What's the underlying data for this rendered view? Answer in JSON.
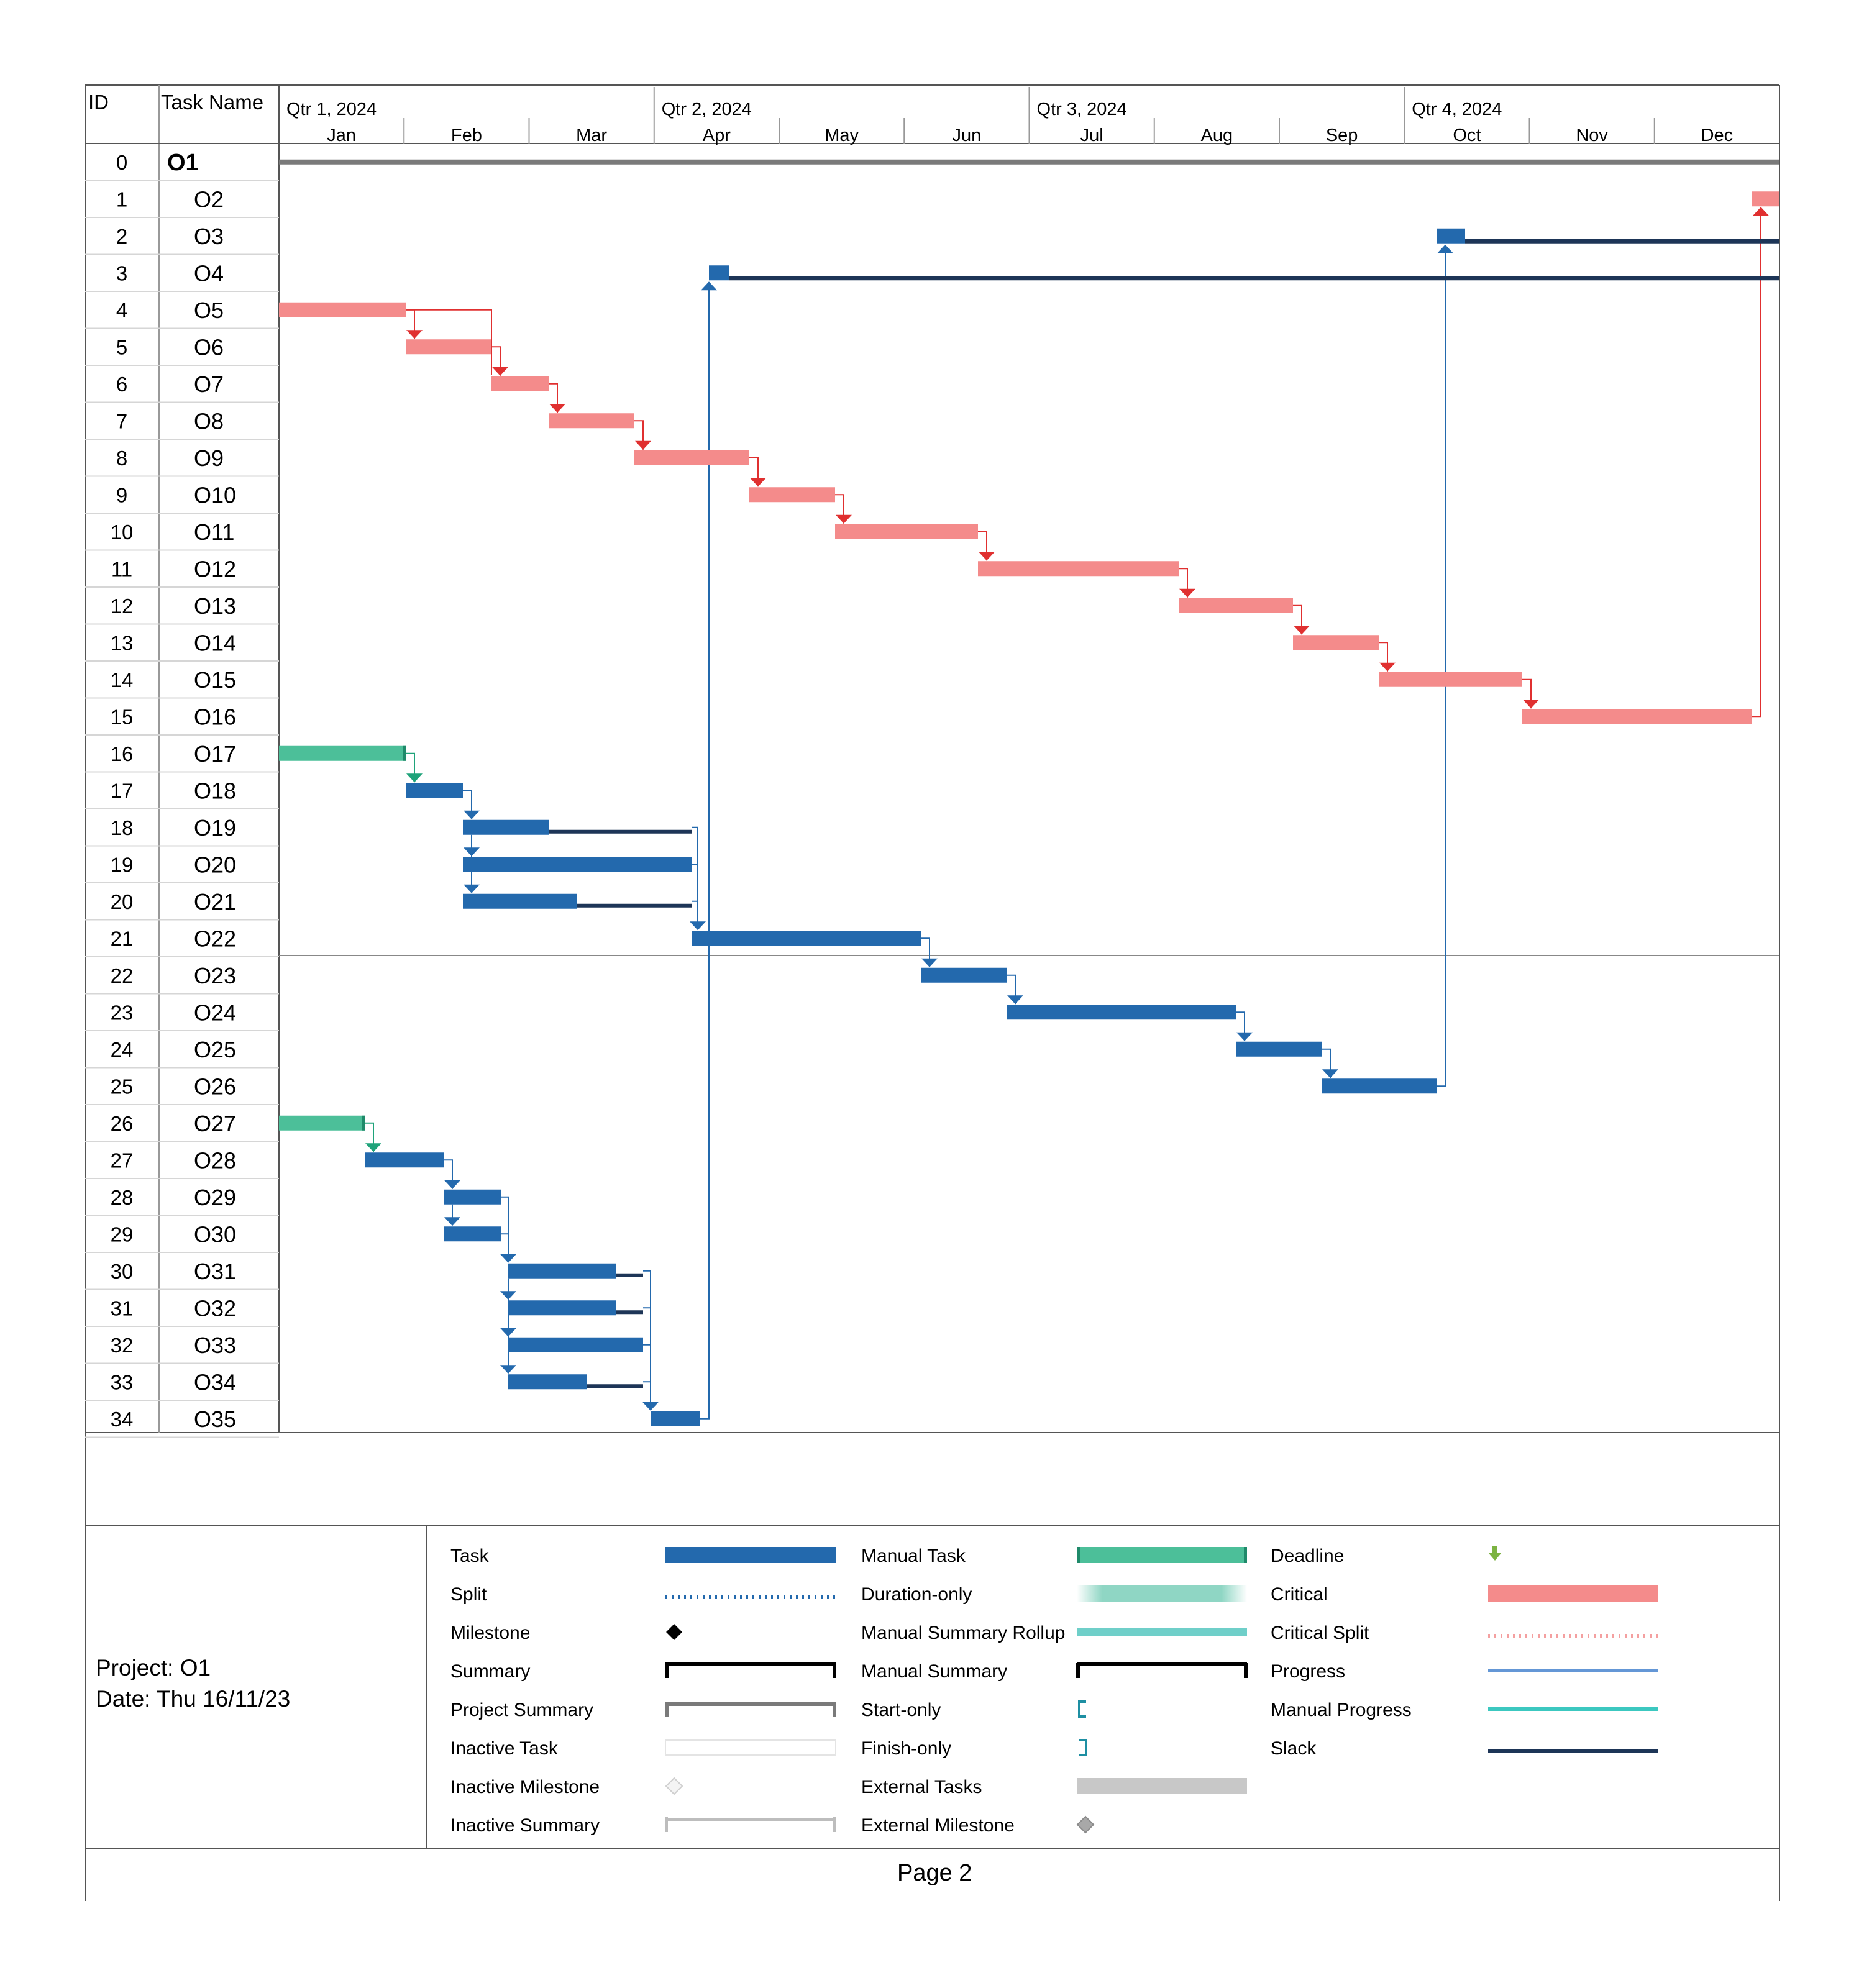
{
  "header": {
    "id_label": "ID",
    "task_name_label": "Task Name",
    "quarters": [
      "Qtr 1, 2024",
      "Qtr 2, 2024",
      "Qtr 3, 2024",
      "Qtr 4, 2024"
    ],
    "months": [
      "Jan",
      "Feb",
      "Mar",
      "Apr",
      "May",
      "Jun",
      "Jul",
      "Aug",
      "Sep",
      "Oct",
      "Nov",
      "Dec"
    ]
  },
  "rows": [
    {
      "id": "0",
      "name": "O1"
    },
    {
      "id": "1",
      "name": "O2"
    },
    {
      "id": "2",
      "name": "O3"
    },
    {
      "id": "3",
      "name": "O4"
    },
    {
      "id": "4",
      "name": "O5"
    },
    {
      "id": "5",
      "name": "O6"
    },
    {
      "id": "6",
      "name": "O7"
    },
    {
      "id": "7",
      "name": "O8"
    },
    {
      "id": "8",
      "name": "O9"
    },
    {
      "id": "9",
      "name": "O10"
    },
    {
      "id": "10",
      "name": "O11"
    },
    {
      "id": "11",
      "name": "O12"
    },
    {
      "id": "12",
      "name": "O13"
    },
    {
      "id": "13",
      "name": "O14"
    },
    {
      "id": "14",
      "name": "O15"
    },
    {
      "id": "15",
      "name": "O16"
    },
    {
      "id": "16",
      "name": "O17"
    },
    {
      "id": "17",
      "name": "O18"
    },
    {
      "id": "18",
      "name": "O19"
    },
    {
      "id": "19",
      "name": "O20"
    },
    {
      "id": "20",
      "name": "O21"
    },
    {
      "id": "21",
      "name": "O22"
    },
    {
      "id": "22",
      "name": "O23"
    },
    {
      "id": "23",
      "name": "O24"
    },
    {
      "id": "24",
      "name": "O25"
    },
    {
      "id": "25",
      "name": "O26"
    },
    {
      "id": "26",
      "name": "O27"
    },
    {
      "id": "27",
      "name": "O28"
    },
    {
      "id": "28",
      "name": "O29"
    },
    {
      "id": "29",
      "name": "O30"
    },
    {
      "id": "30",
      "name": "O31"
    },
    {
      "id": "31",
      "name": "O32"
    },
    {
      "id": "32",
      "name": "O33"
    },
    {
      "id": "33",
      "name": "O34"
    },
    {
      "id": "34",
      "name": "O35"
    }
  ],
  "footer": {
    "project": "Project: O1",
    "date": "Date: Thu 16/11/23",
    "page": "Page 2"
  },
  "legend": {
    "col1": [
      "Task",
      "Split",
      "Milestone",
      "Summary",
      "Project Summary",
      "Inactive Task",
      "Inactive Milestone",
      "Inactive Summary"
    ],
    "col2": [
      "Manual Task",
      "Duration-only",
      "Manual Summary Rollup",
      "Manual Summary",
      "Start-only",
      "Finish-only",
      "External Tasks",
      "External Milestone"
    ],
    "col3": [
      "Deadline",
      "Critical",
      "Critical Split",
      "Progress",
      "Manual Progress",
      "Slack"
    ]
  },
  "colors": {
    "task": "#2369ad",
    "critical": "#f48b8b",
    "manual_task": "#4cbf99",
    "slack": "#1d3557",
    "link": "#2369ad",
    "critical_link": "#e03030"
  }
}
